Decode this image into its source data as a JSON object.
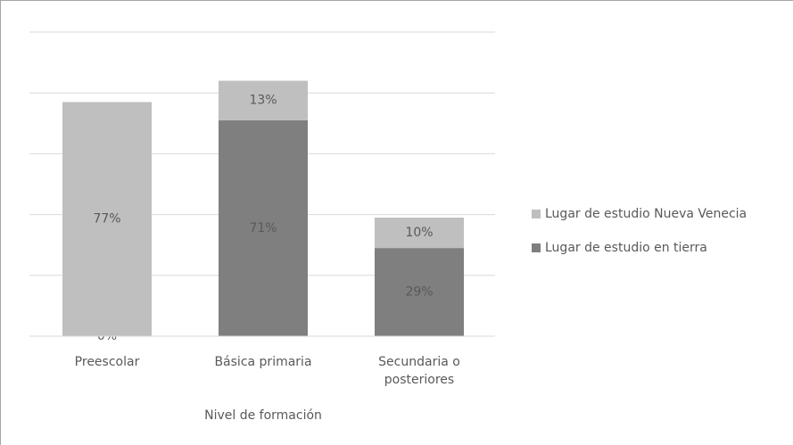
{
  "chart_data": {
    "type": "bar",
    "stacked": true,
    "x_label": "Nivel de formación",
    "categories": [
      "Preescolar",
      "Básica primaria",
      "Secundaria o posteriores"
    ],
    "series": [
      {
        "name": "Lugar de estudio en tierra",
        "color": "#7f7f7f",
        "values": [
          0,
          71,
          29
        ],
        "value_labels": [
          "0%",
          "71%",
          "29%"
        ]
      },
      {
        "name": "Lugar de estudio Nueva Venecia",
        "color": "#bfbfbf",
        "values": [
          77,
          13,
          10
        ],
        "value_labels": [
          "77%",
          "13%",
          "10%"
        ]
      }
    ],
    "ylim": [
      0,
      100
    ],
    "yticks": [
      0,
      20,
      40,
      60,
      80,
      100
    ],
    "grid": true,
    "legend": "right"
  }
}
